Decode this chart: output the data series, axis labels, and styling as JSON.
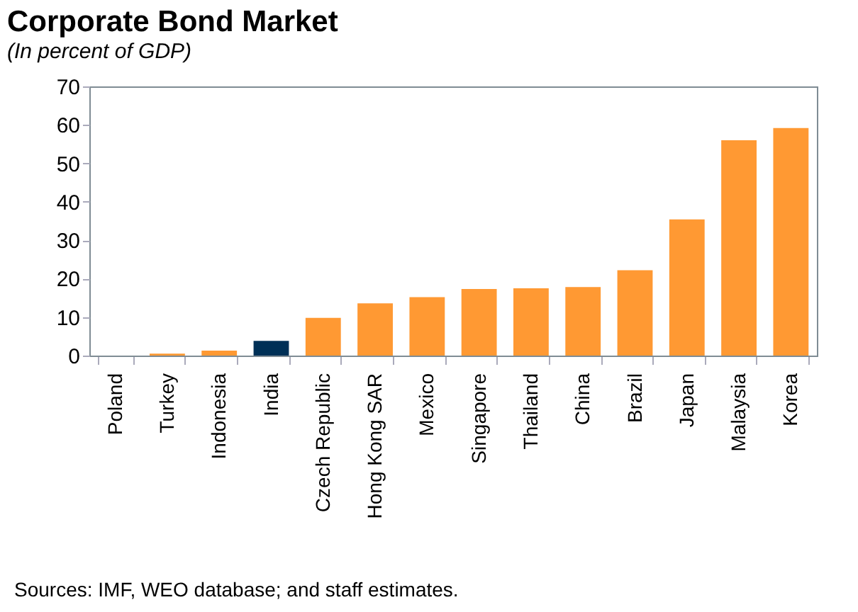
{
  "chart_data": {
    "type": "bar",
    "title": "Corporate Bond Market",
    "subtitle": "(In percent of GDP)",
    "categories": [
      "Poland",
      "Turkey",
      "Indonesia",
      "India",
      "Czech Republic",
      "Hong Kong SAR",
      "Mexico",
      "Singapore",
      "Thailand",
      "China",
      "Brazil",
      "Japan",
      "Malaysia",
      "Korea"
    ],
    "values": [
      0,
      0.5,
      1.3,
      3.8,
      9.8,
      13.6,
      15.2,
      17.3,
      17.5,
      17.8,
      22.2,
      35.4,
      56.0,
      59.2
    ],
    "colors": [
      "#ff9933",
      "#ff9933",
      "#ff9933",
      "#003057",
      "#ff9933",
      "#ff9933",
      "#ff9933",
      "#ff9933",
      "#ff9933",
      "#ff9933",
      "#ff9933",
      "#ff9933",
      "#ff9933",
      "#ff9933"
    ],
    "ylim": [
      0,
      70
    ],
    "yticks": [
      0,
      10,
      20,
      30,
      40,
      50,
      60,
      70
    ],
    "annotations": [
      "Sources: IMF, WEO database; and staff estimates."
    ]
  }
}
